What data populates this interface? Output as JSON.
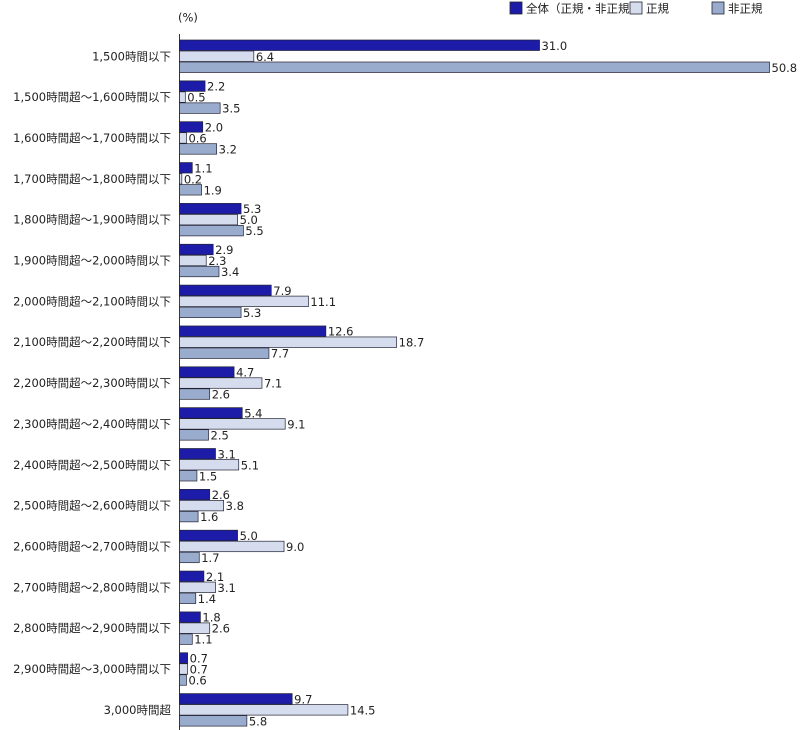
{
  "chart_data": {
    "type": "bar",
    "orientation": "horizontal",
    "unit_label": "(%)",
    "categories": [
      "1,500時間以下",
      "1,500時間超～1,600時間以下",
      "1,600時間超～1,700時間以下",
      "1,700時間超～1,800時間以下",
      "1,800時間超～1,900時間以下",
      "1,900時間超～2,000時間以下",
      "2,000時間超～2,100時間以下",
      "2,100時間超～2,200時間以下",
      "2,200時間超～2,300時間以下",
      "2,300時間超～2,400時間以下",
      "2,400時間超～2,500時間以下",
      "2,500時間超～2,600時間以下",
      "2,600時間超～2,700時間以下",
      "2,700時間超～2,800時間以下",
      "2,800時間超～2,900時間以下",
      "2,900時間超～3,000時間以下",
      "3,000時間超"
    ],
    "series": [
      {
        "name": "全体（正規・非正規）",
        "color": "#1c1ca8",
        "values": [
          31.0,
          2.2,
          2.0,
          1.1,
          5.3,
          2.9,
          7.9,
          12.6,
          4.7,
          5.4,
          3.1,
          2.6,
          5.0,
          2.1,
          1.8,
          0.7,
          9.7
        ],
        "value_labels": [
          "31.0",
          "2.2",
          "2.0",
          "1.1",
          "5.3",
          "2.9",
          "7.9",
          "12.6",
          "4.7",
          "5.4",
          "3.1",
          "2.6",
          "5.0",
          "2.1",
          "1.8",
          "0.7",
          "9.7"
        ]
      },
      {
        "name": "正規",
        "color": "#d5dcee",
        "values": [
          6.4,
          0.5,
          0.6,
          0.2,
          5.0,
          2.3,
          11.1,
          18.7,
          7.1,
          9.1,
          5.1,
          3.8,
          9.0,
          3.1,
          2.6,
          0.7,
          14.5
        ],
        "value_labels": [
          "6.4",
          "0.5",
          "0.6",
          "0.2",
          "5.0",
          "2.3",
          "11.1",
          "18.7",
          "7.1",
          "9.1",
          "5.1",
          "3.8",
          "9.0",
          "3.1",
          "2.6",
          "0.7",
          "14.5"
        ]
      },
      {
        "name": "非正規",
        "color": "#9aaccd",
        "values": [
          50.8,
          3.5,
          3.2,
          1.9,
          5.5,
          3.4,
          5.3,
          7.7,
          2.6,
          2.5,
          1.5,
          1.6,
          1.7,
          1.4,
          1.1,
          0.6,
          5.8
        ],
        "value_labels": [
          "50.8",
          "3.5",
          "3.2",
          "1.9",
          "5.5",
          "3.4",
          "5.3",
          "7.7",
          "2.6",
          "2.5",
          "1.5",
          "1.6",
          "1.7",
          "1.4",
          "1.1",
          "0.6",
          "5.8"
        ]
      }
    ]
  }
}
